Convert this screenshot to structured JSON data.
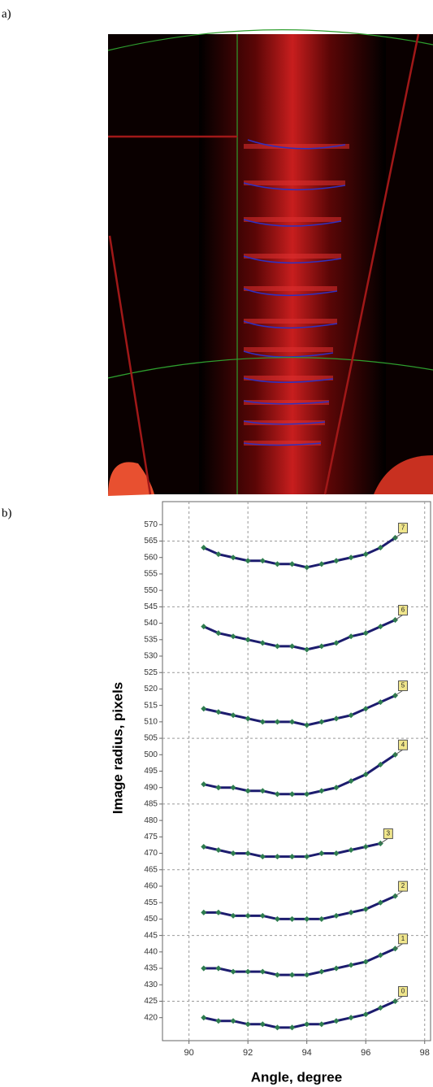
{
  "panels": {
    "a": "a)",
    "b": "b)"
  },
  "chart_data": {
    "type": "line",
    "x_label": "Angle, degree",
    "y_label": "Image radius, pixels",
    "x": [
      90.5,
      91,
      91.5,
      92,
      92.5,
      93,
      93.5,
      94,
      94.5,
      95,
      95.5,
      96,
      96.5,
      97
    ],
    "series": [
      {
        "name": "7",
        "color": "#1c1c6e",
        "values": [
          563,
          561,
          560,
          559,
          559,
          558,
          558,
          557,
          558,
          559,
          560,
          561,
          563,
          566
        ]
      },
      {
        "name": "6",
        "color": "#1c1c6e",
        "values": [
          539,
          537,
          536,
          535,
          534,
          533,
          533,
          532,
          533,
          534,
          536,
          537,
          539,
          541
        ]
      },
      {
        "name": "5",
        "color": "#1c1c6e",
        "values": [
          514,
          513,
          512,
          511,
          510,
          510,
          510,
          509,
          510,
          511,
          512,
          514,
          516,
          518
        ]
      },
      {
        "name": "4",
        "color": "#1c1c6e",
        "values": [
          491,
          490,
          490,
          489,
          489,
          488,
          488,
          488,
          489,
          490,
          492,
          494,
          497,
          500
        ]
      },
      {
        "name": "3",
        "color": "#1c1c6e",
        "values": [
          472,
          471,
          470,
          470,
          469,
          469,
          469,
          469,
          470,
          470,
          471,
          472,
          473,
          null
        ]
      },
      {
        "name": "2",
        "color": "#1c1c6e",
        "values": [
          452,
          452,
          451,
          451,
          451,
          450,
          450,
          450,
          450,
          451,
          452,
          453,
          455,
          457
        ]
      },
      {
        "name": "1",
        "color": "#1c1c6e",
        "values": [
          435,
          435,
          434,
          434,
          434,
          433,
          433,
          433,
          434,
          435,
          436,
          437,
          439,
          441
        ]
      },
      {
        "name": "0",
        "color": "#1c1c6e",
        "values": [
          420,
          419,
          419,
          418,
          418,
          417,
          417,
          418,
          418,
          419,
          420,
          421,
          423,
          425
        ]
      }
    ],
    "marker_color": "#2e7d4f",
    "label_color": "#f0e68c",
    "xlim": [
      89.1,
      98.2
    ],
    "xticks": [
      90,
      92,
      94,
      96,
      98
    ],
    "ylim": [
      413,
      577
    ],
    "yticks": [
      420,
      425,
      430,
      435,
      440,
      445,
      450,
      455,
      460,
      465,
      470,
      475,
      480,
      485,
      490,
      495,
      500,
      505,
      510,
      515,
      520,
      525,
      530,
      535,
      540,
      545,
      550,
      555,
      560,
      565,
      570
    ],
    "grid": true
  }
}
